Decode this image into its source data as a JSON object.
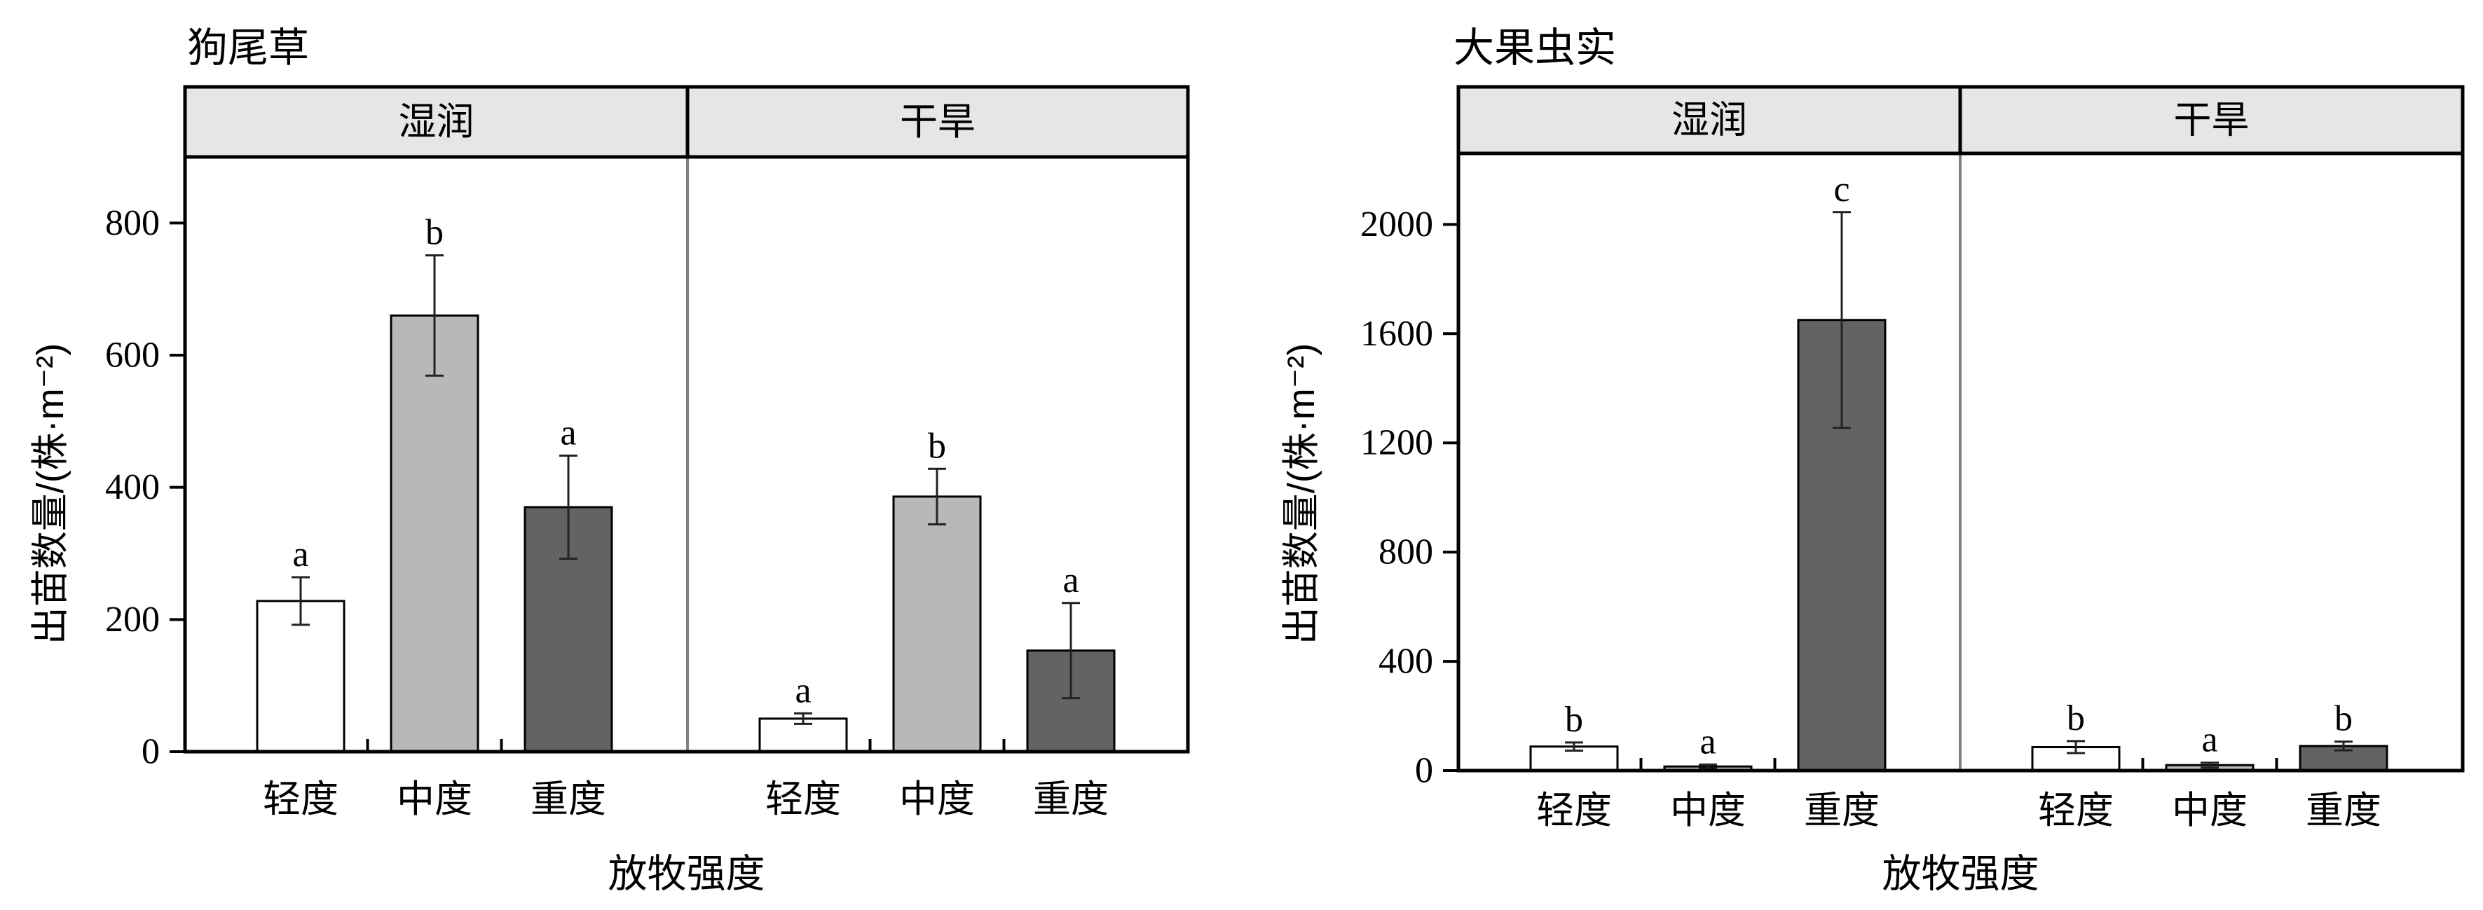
{
  "chart_data": [
    {
      "type": "bar",
      "title": "狗尾草",
      "facets": [
        "湿润",
        "干旱"
      ],
      "categories": [
        "轻度",
        "中度",
        "重度"
      ],
      "xlabel": "放牧强度",
      "ylabel": "出苗数量/(株·m⁻²)",
      "ylim": [
        0,
        900
      ],
      "yticks": [
        0,
        200,
        400,
        600,
        800
      ],
      "colors": [
        "#ffffff",
        "#b8b8b8",
        "#636363"
      ],
      "groups": [
        {
          "facet": "湿润",
          "values": [
            228,
            660,
            370
          ],
          "errors": [
            36,
            91,
            78
          ],
          "letters": [
            "a",
            "b",
            "a"
          ]
        },
        {
          "facet": "干旱",
          "values": [
            50,
            386,
            153
          ],
          "errors": [
            8,
            42,
            72
          ],
          "letters": [
            "a",
            "b",
            "a"
          ]
        }
      ],
      "grid": false,
      "legend": "none"
    },
    {
      "type": "bar",
      "title": "大果虫实",
      "facets": [
        "湿润",
        "干旱"
      ],
      "categories": [
        "轻度",
        "中度",
        "重度"
      ],
      "xlabel": "放牧强度",
      "ylabel": "出苗数量/(株·m⁻²)",
      "ylim": [
        0,
        2260
      ],
      "yticks": [
        0,
        400,
        800,
        1200,
        1600,
        2000
      ],
      "colors": [
        "#ffffff",
        "#b8b8b8",
        "#636363"
      ],
      "groups": [
        {
          "facet": "湿润",
          "values": [
            88,
            15,
            1650
          ],
          "errors": [
            15,
            7,
            395
          ],
          "letters": [
            "b",
            "a",
            "c"
          ]
        },
        {
          "facet": "干旱",
          "values": [
            86,
            20,
            90
          ],
          "errors": [
            22,
            9,
            16
          ],
          "letters": [
            "b",
            "a",
            "b"
          ]
        }
      ],
      "grid": false,
      "legend": "none"
    }
  ]
}
